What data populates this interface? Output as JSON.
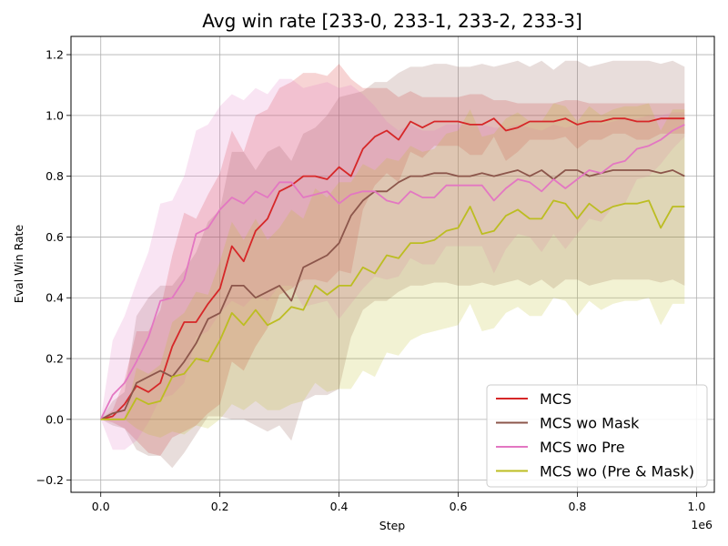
{
  "chart_data": {
    "type": "line",
    "title": "Avg win rate [233-0, 233-1, 233-2, 233-3]",
    "xlabel": "Step",
    "ylabel": "Eval Win Rate",
    "x_offset_label": "1e6",
    "xlim": [
      -0.05,
      1.03
    ],
    "ylim": [
      -0.24,
      1.26
    ],
    "x_ticks": [
      0.0,
      0.2,
      0.4,
      0.6,
      0.8,
      1.0
    ],
    "x_tick_labels": [
      "0.0",
      "0.2",
      "0.4",
      "0.6",
      "0.8",
      "1.0"
    ],
    "y_ticks": [
      -0.2,
      0.0,
      0.2,
      0.4,
      0.6,
      0.8,
      1.0,
      1.2
    ],
    "y_tick_labels": [
      "−0.2",
      "0.0",
      "0.2",
      "0.4",
      "0.6",
      "0.8",
      "1.0",
      "1.2"
    ],
    "grid": true,
    "legend_position": "lower-right",
    "x": [
      0.0,
      0.02,
      0.04,
      0.06,
      0.08,
      0.1,
      0.12,
      0.14,
      0.16,
      0.18,
      0.2,
      0.22,
      0.24,
      0.26,
      0.28,
      0.3,
      0.32,
      0.34,
      0.36,
      0.38,
      0.4,
      0.42,
      0.44,
      0.46,
      0.48,
      0.5,
      0.52,
      0.54,
      0.56,
      0.58,
      0.6,
      0.62,
      0.64,
      0.66,
      0.68,
      0.7,
      0.72,
      0.74,
      0.76,
      0.78,
      0.8,
      0.82,
      0.84,
      0.86,
      0.88,
      0.9,
      0.92,
      0.94,
      0.96,
      0.98
    ],
    "series": [
      {
        "name": "MCS",
        "color": "#d62728",
        "values": [
          0.0,
          0.01,
          0.05,
          0.11,
          0.09,
          0.12,
          0.24,
          0.32,
          0.32,
          0.38,
          0.43,
          0.57,
          0.52,
          0.62,
          0.66,
          0.75,
          0.77,
          0.8,
          0.8,
          0.79,
          0.83,
          0.8,
          0.89,
          0.93,
          0.95,
          0.92,
          0.98,
          0.96,
          0.98,
          0.98,
          0.98,
          0.97,
          0.97,
          0.99,
          0.95,
          0.96,
          0.98,
          0.98,
          0.98,
          0.99,
          0.97,
          0.98,
          0.98,
          0.99,
          0.99,
          0.98,
          0.98,
          0.99,
          0.99,
          0.99
        ],
        "band_width": [
          0.0,
          0.02,
          0.08,
          0.18,
          0.2,
          0.24,
          0.3,
          0.36,
          0.34,
          0.36,
          0.38,
          0.38,
          0.36,
          0.38,
          0.36,
          0.34,
          0.34,
          0.34,
          0.34,
          0.34,
          0.34,
          0.32,
          0.2,
          0.16,
          0.14,
          0.14,
          0.1,
          0.1,
          0.08,
          0.08,
          0.08,
          0.1,
          0.1,
          0.06,
          0.1,
          0.08,
          0.06,
          0.06,
          0.06,
          0.06,
          0.08,
          0.06,
          0.06,
          0.05,
          0.05,
          0.06,
          0.06,
          0.05,
          0.05,
          0.05
        ]
      },
      {
        "name": "MCS wo Mask",
        "color": "#8c564b",
        "values": [
          0.0,
          0.02,
          0.03,
          0.12,
          0.14,
          0.16,
          0.14,
          0.19,
          0.25,
          0.33,
          0.35,
          0.44,
          0.44,
          0.4,
          0.42,
          0.44,
          0.39,
          0.5,
          0.52,
          0.54,
          0.58,
          0.67,
          0.72,
          0.75,
          0.75,
          0.78,
          0.8,
          0.8,
          0.81,
          0.81,
          0.8,
          0.8,
          0.81,
          0.8,
          0.81,
          0.82,
          0.8,
          0.82,
          0.79,
          0.82,
          0.82,
          0.8,
          0.81,
          0.82,
          0.82,
          0.82,
          0.82,
          0.81,
          0.82,
          0.8
        ],
        "band_width": [
          0.0,
          0.04,
          0.06,
          0.22,
          0.26,
          0.28,
          0.3,
          0.3,
          0.3,
          0.32,
          0.34,
          0.44,
          0.44,
          0.42,
          0.46,
          0.46,
          0.46,
          0.44,
          0.44,
          0.46,
          0.48,
          0.4,
          0.36,
          0.36,
          0.36,
          0.36,
          0.36,
          0.36,
          0.36,
          0.36,
          0.36,
          0.36,
          0.36,
          0.36,
          0.36,
          0.36,
          0.36,
          0.36,
          0.36,
          0.36,
          0.36,
          0.36,
          0.36,
          0.36,
          0.36,
          0.36,
          0.36,
          0.36,
          0.36,
          0.36
        ]
      },
      {
        "name": "MCS wo Pre",
        "color": "#e377c2",
        "values": [
          0.0,
          0.08,
          0.12,
          0.19,
          0.27,
          0.39,
          0.4,
          0.46,
          0.61,
          0.63,
          0.69,
          0.73,
          0.71,
          0.75,
          0.73,
          0.78,
          0.78,
          0.73,
          0.74,
          0.75,
          0.71,
          0.74,
          0.75,
          0.75,
          0.72,
          0.71,
          0.75,
          0.73,
          0.73,
          0.77,
          0.77,
          0.77,
          0.77,
          0.72,
          0.76,
          0.79,
          0.78,
          0.75,
          0.79,
          0.76,
          0.79,
          0.82,
          0.81,
          0.84,
          0.85,
          0.89,
          0.9,
          0.92,
          0.95,
          0.97
        ],
        "band_width": [
          0.0,
          0.18,
          0.22,
          0.26,
          0.28,
          0.32,
          0.32,
          0.34,
          0.34,
          0.34,
          0.34,
          0.34,
          0.34,
          0.34,
          0.34,
          0.34,
          0.34,
          0.36,
          0.36,
          0.36,
          0.38,
          0.36,
          0.32,
          0.28,
          0.26,
          0.24,
          0.22,
          0.22,
          0.22,
          0.2,
          0.2,
          0.2,
          0.2,
          0.24,
          0.2,
          0.18,
          0.18,
          0.2,
          0.18,
          0.2,
          0.18,
          0.16,
          0.16,
          0.14,
          0.14,
          0.1,
          0.1,
          0.08,
          0.06,
          0.04
        ]
      },
      {
        "name": "MCS wo (Pre & Mask)",
        "color": "#bcbd22",
        "values": [
          0.0,
          0.0,
          0.0,
          0.07,
          0.05,
          0.06,
          0.14,
          0.15,
          0.2,
          0.19,
          0.26,
          0.35,
          0.31,
          0.36,
          0.31,
          0.33,
          0.37,
          0.36,
          0.44,
          0.41,
          0.44,
          0.44,
          0.5,
          0.48,
          0.54,
          0.53,
          0.58,
          0.58,
          0.59,
          0.62,
          0.63,
          0.7,
          0.61,
          0.62,
          0.67,
          0.69,
          0.66,
          0.66,
          0.72,
          0.71,
          0.66,
          0.71,
          0.68,
          0.7,
          0.71,
          0.71,
          0.72,
          0.63,
          0.7,
          0.7
        ],
        "band_width": [
          0.0,
          0.0,
          0.0,
          0.1,
          0.1,
          0.12,
          0.18,
          0.2,
          0.22,
          0.22,
          0.26,
          0.3,
          0.28,
          0.3,
          0.28,
          0.3,
          0.32,
          0.3,
          0.32,
          0.32,
          0.34,
          0.34,
          0.34,
          0.34,
          0.32,
          0.32,
          0.32,
          0.3,
          0.3,
          0.32,
          0.32,
          0.32,
          0.32,
          0.32,
          0.32,
          0.32,
          0.32,
          0.32,
          0.32,
          0.32,
          0.32,
          0.32,
          0.32,
          0.32,
          0.32,
          0.32,
          0.32,
          0.32,
          0.32,
          0.32
        ]
      }
    ]
  }
}
